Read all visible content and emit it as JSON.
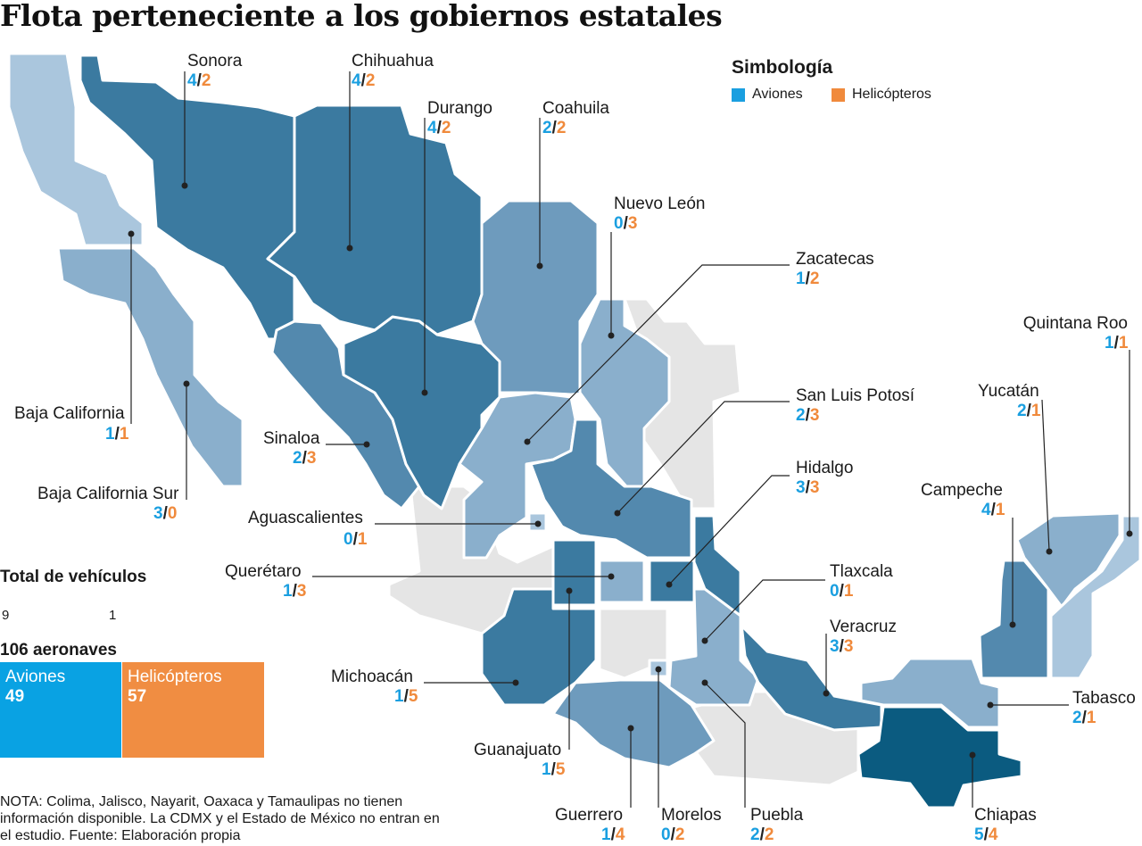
{
  "title": "Flota perteneciente a los gobiernos estatales",
  "legend": {
    "title": "Simbología",
    "items": [
      {
        "label": "Aviones",
        "color": "#1a9fe0"
      },
      {
        "label": "Helicópteros",
        "color": "#f08a3c"
      }
    ]
  },
  "states": [
    {
      "name": "Sonora",
      "planes": "4",
      "helis": "2"
    },
    {
      "name": "Chihuahua",
      "planes": "4",
      "helis": "2"
    },
    {
      "name": "Durango",
      "planes": "4",
      "helis": "2"
    },
    {
      "name": "Coahuila",
      "planes": "2",
      "helis": "2"
    },
    {
      "name": "Nuevo León",
      "planes": "0",
      "helis": "3"
    },
    {
      "name": "Zacatecas",
      "planes": "1",
      "helis": "2"
    },
    {
      "name": "San Luis Potosí",
      "planes": "2",
      "helis": "3"
    },
    {
      "name": "Hidalgo",
      "planes": "3",
      "helis": "3"
    },
    {
      "name": "Tlaxcala",
      "planes": "0",
      "helis": "1"
    },
    {
      "name": "Veracruz",
      "planes": "3",
      "helis": "3"
    },
    {
      "name": "Tabasco",
      "planes": "2",
      "helis": "1"
    },
    {
      "name": "Quintana Roo",
      "planes": "1",
      "helis": "1"
    },
    {
      "name": "Yucatán",
      "planes": "2",
      "helis": "1"
    },
    {
      "name": "Campeche",
      "planes": "4",
      "helis": "1"
    },
    {
      "name": "Chiapas",
      "planes": "5",
      "helis": "4"
    },
    {
      "name": "Puebla",
      "planes": "2",
      "helis": "2"
    },
    {
      "name": "Morelos",
      "planes": "0",
      "helis": "2"
    },
    {
      "name": "Guerrero",
      "planes": "1",
      "helis": "4"
    },
    {
      "name": "Guanajuato",
      "planes": "1",
      "helis": "5"
    },
    {
      "name": "Michoacán",
      "planes": "1",
      "helis": "5"
    },
    {
      "name": "Querétaro",
      "planes": "1",
      "helis": "3"
    },
    {
      "name": "Aguascalientes",
      "planes": "0",
      "helis": "1"
    },
    {
      "name": "Sinaloa",
      "planes": "2",
      "helis": "3"
    },
    {
      "name": "Baja California",
      "planes": "1",
      "helis": "1"
    },
    {
      "name": "Baja California Sur",
      "planes": "3",
      "helis": "0"
    }
  ],
  "totals": {
    "title": "Total de vehículos",
    "scale_ticks": [
      "9",
      "1"
    ],
    "aircraft_label": "106 aeronaves",
    "planes_label": "Aviones",
    "planes_value": "49",
    "helis_label": "Helicópteros",
    "helis_value": "57"
  },
  "note": "NOTA: Colima, Jalisco, Nayarit, Oaxaca y Tamaulipas no tienen información disponible. La CDMX y el Estado de México no entran en el estudio. Fuente: Elaboración propia",
  "colors": {
    "no_data": "#e5e5e5",
    "shade_1": "#aac6dd",
    "shade_2": "#8aafcc",
    "shade_3": "#6e9bbd",
    "shade_4": "#5389ae",
    "shade_5": "#3b7aa0",
    "shade_6": "#0b5b80"
  }
}
